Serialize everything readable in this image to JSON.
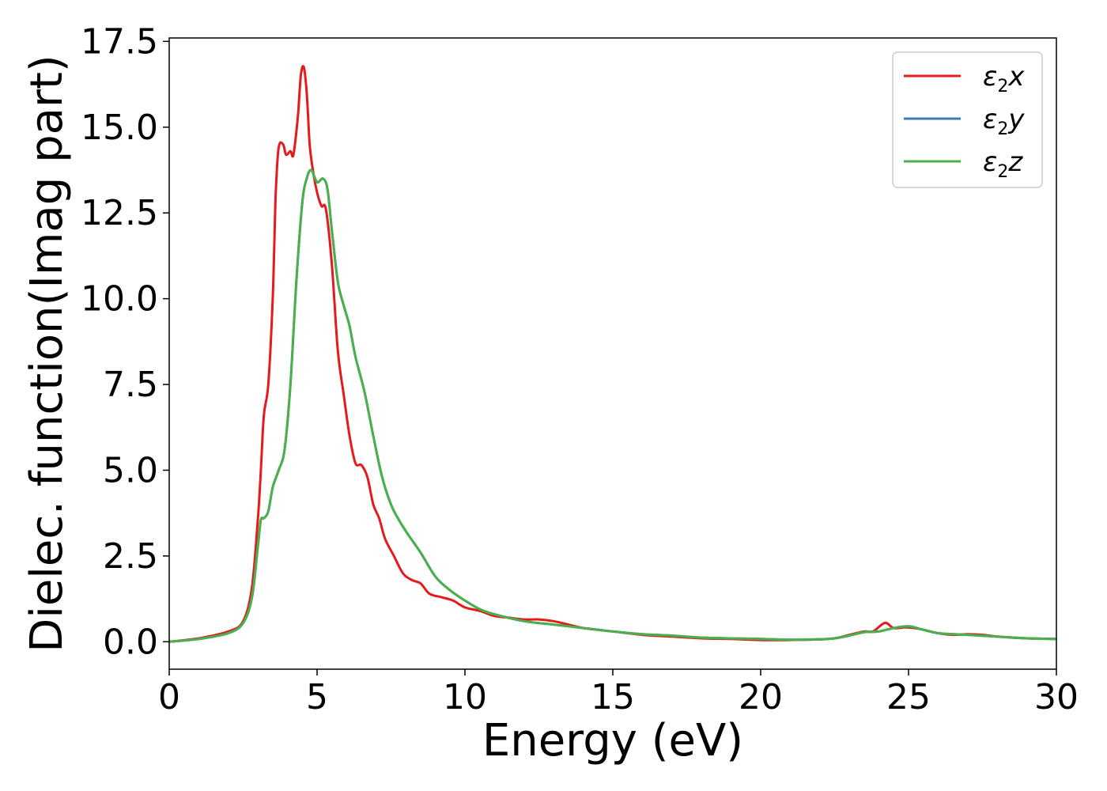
{
  "chart_data": {
    "type": "line",
    "title": "",
    "xlabel": "Energy (eV)",
    "ylabel": "Dielec. function(Imag part)",
    "xlim": [
      0,
      30
    ],
    "ylim": [
      -0.8,
      17.6
    ],
    "xticks": [
      0,
      5,
      10,
      15,
      20,
      25,
      30
    ],
    "xtick_labels": [
      "0",
      "5",
      "10",
      "15",
      "20",
      "25",
      "30"
    ],
    "yticks": [
      0,
      2.5,
      5,
      7.5,
      10,
      12.5,
      15,
      17.5
    ],
    "ytick_labels": [
      "0.0",
      "2.5",
      "5.0",
      "7.5",
      "10.0",
      "12.5",
      "15.0",
      "17.5"
    ],
    "grid": false,
    "legend_position": "top-right",
    "series": [
      {
        "name": "ε2x",
        "legend_symbol": "ε",
        "legend_sub": "2",
        "legend_axis": "x",
        "color": "#e41a1c",
        "x": [
          0,
          1,
          2,
          2.5,
          2.8,
          3.0,
          3.1,
          3.2,
          3.35,
          3.5,
          3.6,
          3.7,
          3.85,
          3.95,
          4.1,
          4.2,
          4.35,
          4.45,
          4.55,
          4.65,
          4.75,
          4.85,
          5.0,
          5.15,
          5.3,
          5.5,
          5.7,
          5.9,
          6.1,
          6.3,
          6.5,
          6.7,
          6.9,
          7.1,
          7.3,
          7.6,
          7.9,
          8.2,
          8.5,
          8.8,
          9.2,
          9.6,
          10.0,
          10.5,
          11.0,
          11.5,
          12.0,
          12.5,
          13.0,
          13.5,
          14.0,
          15.0,
          16.0,
          17.0,
          18.0,
          19.0,
          20.0,
          21.0,
          22.0,
          22.5,
          23.0,
          23.5,
          23.8,
          24.2,
          24.5,
          24.9,
          25.2,
          25.5,
          26.0,
          26.5,
          27.0,
          27.5,
          28.0,
          28.5,
          29.0,
          30.0
        ],
        "y": [
          0.0,
          0.1,
          0.3,
          0.6,
          1.6,
          3.6,
          5.0,
          6.6,
          7.5,
          10.0,
          13.0,
          14.4,
          14.5,
          14.2,
          14.3,
          14.2,
          15.3,
          16.5,
          16.75,
          16.0,
          14.5,
          13.8,
          13.1,
          12.7,
          12.6,
          11.0,
          8.5,
          7.2,
          6.0,
          5.2,
          5.15,
          4.8,
          4.0,
          3.6,
          3.0,
          2.5,
          2.0,
          1.8,
          1.7,
          1.4,
          1.3,
          1.2,
          1.0,
          0.9,
          0.75,
          0.7,
          0.65,
          0.65,
          0.6,
          0.5,
          0.4,
          0.3,
          0.2,
          0.15,
          0.1,
          0.08,
          0.05,
          0.05,
          0.07,
          0.1,
          0.2,
          0.3,
          0.3,
          0.55,
          0.4,
          0.42,
          0.4,
          0.35,
          0.25,
          0.2,
          0.22,
          0.2,
          0.15,
          0.12,
          0.1,
          0.08
        ]
      },
      {
        "name": "ε2y",
        "legend_symbol": "ε",
        "legend_sub": "2",
        "legend_axis": "y",
        "color": "#377eb8",
        "x": [
          0,
          1,
          2,
          2.5,
          2.8,
          3.0,
          3.1,
          3.2,
          3.35,
          3.5,
          3.7,
          3.9,
          4.1,
          4.3,
          4.5,
          4.65,
          4.8,
          5.0,
          5.2,
          5.35,
          5.5,
          5.7,
          5.9,
          6.1,
          6.3,
          6.6,
          6.9,
          7.2,
          7.5,
          7.8,
          8.1,
          8.5,
          9.0,
          9.5,
          10.0,
          10.5,
          11.0,
          12.0,
          13.0,
          14.0,
          15.0,
          16.0,
          17.0,
          18.0,
          19.0,
          20.0,
          21.0,
          22.0,
          22.5,
          23.0,
          23.5,
          24.0,
          24.5,
          25.0,
          25.5,
          26.0,
          27.0,
          28.0,
          29.0,
          30.0
        ],
        "y": [
          0.0,
          0.08,
          0.25,
          0.55,
          1.3,
          2.8,
          3.55,
          3.6,
          3.8,
          4.5,
          5.0,
          5.6,
          7.5,
          10.5,
          12.8,
          13.5,
          13.75,
          13.4,
          13.5,
          13.2,
          12.0,
          10.5,
          9.8,
          9.2,
          8.3,
          7.3,
          6.0,
          4.8,
          4.0,
          3.5,
          3.1,
          2.6,
          1.9,
          1.5,
          1.2,
          0.95,
          0.8,
          0.6,
          0.5,
          0.4,
          0.3,
          0.22,
          0.18,
          0.12,
          0.1,
          0.08,
          0.06,
          0.07,
          0.1,
          0.18,
          0.28,
          0.3,
          0.4,
          0.45,
          0.35,
          0.25,
          0.2,
          0.15,
          0.1,
          0.08
        ]
      },
      {
        "name": "ε2z",
        "legend_symbol": "ε",
        "legend_sub": "2",
        "legend_axis": "z",
        "color": "#4daf4a",
        "x": [
          0,
          1,
          2,
          2.5,
          2.8,
          3.0,
          3.1,
          3.2,
          3.35,
          3.5,
          3.7,
          3.9,
          4.1,
          4.3,
          4.5,
          4.65,
          4.8,
          5.0,
          5.2,
          5.35,
          5.5,
          5.7,
          5.9,
          6.1,
          6.3,
          6.6,
          6.9,
          7.2,
          7.5,
          7.8,
          8.1,
          8.5,
          9.0,
          9.5,
          10.0,
          10.5,
          11.0,
          12.0,
          13.0,
          14.0,
          15.0,
          16.0,
          17.0,
          18.0,
          19.0,
          20.0,
          21.0,
          22.0,
          22.5,
          23.0,
          23.5,
          24.0,
          24.5,
          25.0,
          25.5,
          26.0,
          27.0,
          28.0,
          29.0,
          30.0
        ],
        "y": [
          0.0,
          0.08,
          0.25,
          0.55,
          1.3,
          2.8,
          3.55,
          3.6,
          3.8,
          4.5,
          5.0,
          5.6,
          7.5,
          10.5,
          12.8,
          13.5,
          13.75,
          13.4,
          13.5,
          13.2,
          12.0,
          10.5,
          9.8,
          9.2,
          8.3,
          7.3,
          6.0,
          4.8,
          4.0,
          3.5,
          3.1,
          2.6,
          1.9,
          1.5,
          1.2,
          0.95,
          0.8,
          0.6,
          0.5,
          0.4,
          0.3,
          0.22,
          0.18,
          0.12,
          0.1,
          0.08,
          0.06,
          0.07,
          0.1,
          0.18,
          0.28,
          0.3,
          0.4,
          0.45,
          0.35,
          0.25,
          0.2,
          0.15,
          0.1,
          0.08
        ]
      }
    ]
  }
}
